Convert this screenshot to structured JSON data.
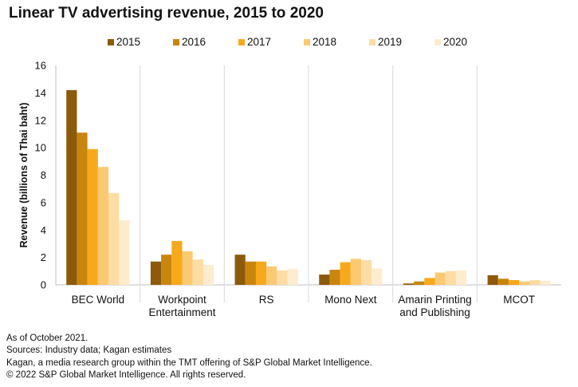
{
  "chart_data": {
    "type": "bar",
    "title": "Linear TV advertising revenue, 2015 to 2020",
    "ylabel": "Revenue (billions of Thai baht)",
    "xlabel": "",
    "ylim": [
      0,
      16
    ],
    "yticks": [
      0,
      2,
      4,
      6,
      8,
      10,
      12,
      14,
      16
    ],
    "grid": false,
    "legend_position": "top",
    "categories": [
      [
        "BEC World"
      ],
      [
        "Workpoint",
        "Entertainment"
      ],
      [
        "RS"
      ],
      [
        "Mono Next"
      ],
      [
        "Amarin Printing",
        "and Publishing"
      ],
      [
        "MCOT"
      ]
    ],
    "series": [
      {
        "name": "2015",
        "color": "#8c5a0a",
        "values": [
          14.2,
          1.7,
          2.2,
          0.75,
          0.1,
          0.7
        ]
      },
      {
        "name": "2016",
        "color": "#c8860e",
        "values": [
          11.1,
          2.2,
          1.7,
          1.1,
          0.25,
          0.45
        ]
      },
      {
        "name": "2017",
        "color": "#f7a91b",
        "values": [
          9.9,
          3.2,
          1.7,
          1.65,
          0.5,
          0.35
        ]
      },
      {
        "name": "2018",
        "color": "#fcc973",
        "values": [
          8.6,
          2.45,
          1.35,
          1.9,
          0.9,
          0.25
        ]
      },
      {
        "name": "2019",
        "color": "#fddda4",
        "values": [
          6.7,
          1.85,
          1.05,
          1.8,
          1.0,
          0.35
        ]
      },
      {
        "name": "2020",
        "color": "#fdecce",
        "values": [
          4.7,
          1.45,
          1.15,
          1.2,
          1.05,
          0.3
        ]
      }
    ]
  },
  "footnotes": [
    "As of October 2021.",
    "Sources: Industry data; Kagan estimates",
    "Kagan, a media research group within the TMT offering of S&P Global Market Intelligence.",
    "© 2022 S&P Global Market Intelligence. All rights reserved."
  ]
}
